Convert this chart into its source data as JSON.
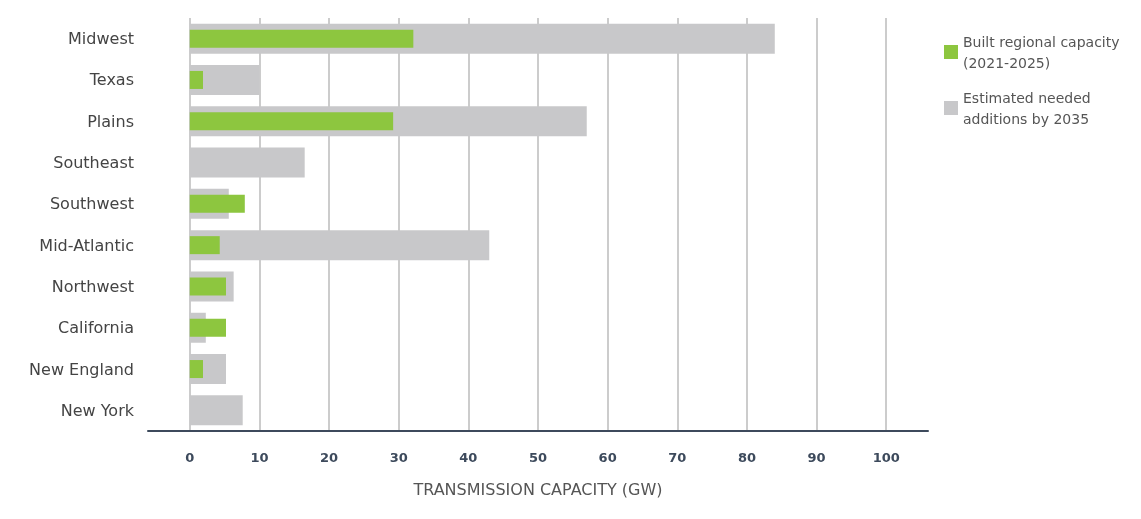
{
  "chart_data": {
    "type": "bar",
    "orientation": "horizontal",
    "xlabel": "TRANSMISSION CAPACITY (GW)",
    "categories": [
      "Midwest",
      "Texas",
      "Plains",
      "Southeast",
      "Southwest",
      "Mid-Atlantic",
      "Northwest",
      "California",
      "New England",
      "New York"
    ],
    "series": [
      {
        "name": "Built regional capacity (2021-2025)",
        "color": "#8dc63f",
        "values": [
          32.1,
          1.9,
          29.2,
          null,
          7.9,
          4.3,
          5.2,
          5.2,
          1.9,
          null
        ]
      },
      {
        "name": "Estimated needed additions by 2035",
        "color": "#c8c8ca",
        "values": [
          84,
          10,
          57,
          16.5,
          5.6,
          43,
          6.3,
          2.3,
          5.2,
          7.6
        ]
      }
    ],
    "xlim": [
      -6,
      106
    ],
    "xticks": [
      0,
      10,
      20,
      30,
      40,
      50,
      60,
      70,
      80,
      90,
      100
    ],
    "grid": "x",
    "legend": "top right"
  }
}
